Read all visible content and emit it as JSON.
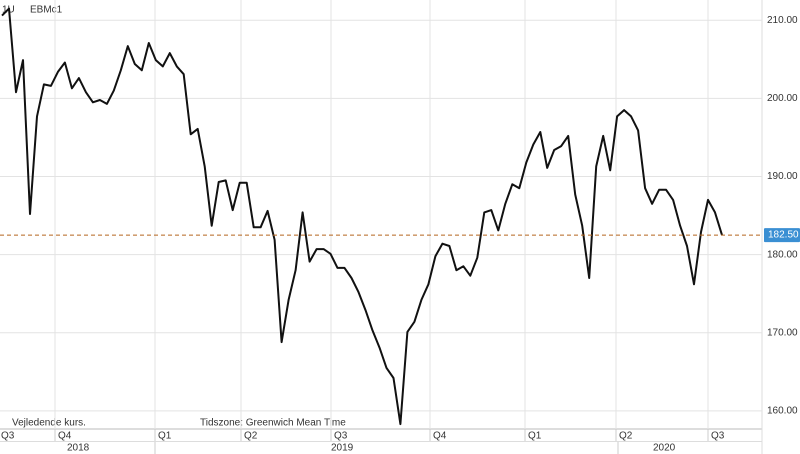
{
  "chart_data": {
    "type": "line",
    "interval": "1U",
    "symbol": "EBMc1",
    "color": "#111111",
    "values": [
      210.6,
      211.5,
      200.8,
      204.9,
      185.2,
      197.7,
      201.8,
      201.6,
      203.4,
      204.6,
      201.3,
      202.6,
      200.8,
      199.5,
      199.8,
      199.3,
      201.0,
      203.6,
      206.7,
      204.4,
      203.6,
      207.1,
      204.9,
      204.1,
      205.8,
      204.1,
      203.1,
      195.4,
      196.1,
      191.3,
      183.7,
      189.3,
      189.5,
      185.7,
      189.2,
      189.2,
      183.5,
      183.5,
      185.6,
      181.9,
      168.8,
      174.2,
      178.0,
      185.4,
      179.1,
      180.7,
      180.7,
      180.1,
      178.3,
      178.3,
      177.0,
      175.2,
      172.9,
      170.3,
      168.1,
      165.5,
      164.2,
      158.3,
      170.1,
      171.4,
      174.2,
      176.2,
      179.8,
      181.4,
      181.1,
      178.0,
      178.5,
      177.3,
      179.6,
      185.4,
      185.7,
      183.1,
      186.5,
      189.0,
      188.5,
      191.8,
      194.1,
      195.7,
      191.1,
      193.4,
      193.9,
      195.2,
      187.7,
      183.7,
      177.0,
      191.3,
      195.2,
      190.8,
      197.7,
      198.5,
      197.7,
      195.9,
      188.5,
      186.5,
      188.3,
      188.3,
      187.0,
      183.7,
      181.1,
      176.2,
      182.9,
      187.0,
      185.4,
      182.5
    ],
    "ylim": [
      157.8,
      212.6
    ],
    "yticks": [
      {
        "value": 160,
        "label": "160.00"
      },
      {
        "value": 170,
        "label": "170.00"
      },
      {
        "value": 180,
        "label": "180.00"
      },
      {
        "value": 190,
        "label": "190.00"
      },
      {
        "value": 200,
        "label": "200.00"
      },
      {
        "value": 210,
        "label": "210.00"
      }
    ],
    "grid": true,
    "last_value": {
      "value": 182.5,
      "label": "182.50"
    },
    "quarters": [
      "Q3",
      "Q4",
      "Q1",
      "Q2",
      "Q3",
      "Q4",
      "Q1",
      "Q2",
      "Q3"
    ],
    "years": [
      "2018",
      "2019",
      "2020"
    ],
    "footnotes": [
      "Vejledende kurs.",
      "Tidszone: Greenwich Mean Time"
    ]
  }
}
